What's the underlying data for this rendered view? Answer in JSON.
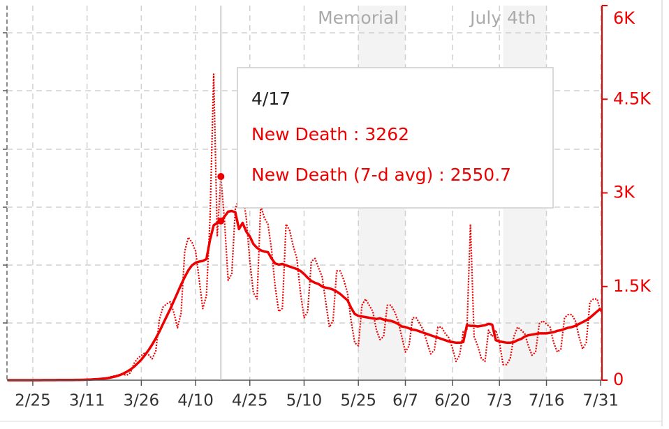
{
  "chart_data": {
    "type": "line",
    "categories": [
      null,
      null,
      null,
      null,
      null,
      null,
      null,
      "2/25",
      null,
      null,
      null,
      null,
      null,
      null,
      null,
      null,
      null,
      null,
      null,
      null,
      null,
      null,
      "3/11",
      null,
      null,
      null,
      null,
      null,
      null,
      null,
      null,
      null,
      null,
      null,
      null,
      null,
      null,
      "3/26",
      null,
      null,
      null,
      null,
      null,
      null,
      null,
      null,
      null,
      null,
      null,
      null,
      null,
      null,
      "4/10",
      null,
      null,
      null,
      null,
      null,
      null,
      null,
      null,
      null,
      null,
      null,
      null,
      null,
      null,
      "4/25",
      null,
      null,
      null,
      null,
      null,
      null,
      null,
      null,
      null,
      null,
      null,
      null,
      null,
      null,
      "5/10",
      null,
      null,
      null,
      null,
      null,
      null,
      null,
      null,
      null,
      null,
      null,
      null,
      null,
      null,
      "5/25",
      null,
      null,
      null,
      null,
      null,
      null,
      null,
      null,
      null,
      null,
      null,
      null,
      "6/7",
      null,
      null,
      null,
      null,
      null,
      null,
      null,
      null,
      null,
      null,
      null,
      null,
      "6/20",
      null,
      null,
      null,
      null,
      null,
      null,
      null,
      null,
      null,
      null,
      null,
      null,
      "7/3",
      null,
      null,
      null,
      null,
      null,
      null,
      null,
      null,
      null,
      null,
      null,
      null,
      "7/16",
      null,
      null,
      null,
      null,
      null,
      null,
      null,
      null,
      null,
      null,
      null,
      null,
      null,
      null,
      "7/31"
    ],
    "series": [
      {
        "name": "New Death",
        "color": "#ee0000",
        "style": "dotted",
        "values": [
          0,
          0,
          0,
          0,
          0,
          0,
          0,
          0,
          0,
          1,
          0,
          1,
          2,
          1,
          2,
          3,
          2,
          3,
          3,
          2,
          4,
          8,
          10,
          12,
          14,
          14,
          13,
          20,
          45,
          62,
          74,
          88,
          89,
          81,
          119,
          269,
          351,
          396,
          440,
          408,
          342,
          469,
          975,
          1170,
          1224,
          1254,
          1080,
          840,
          1071,
          2063,
          2288,
          2208,
          2068,
          1615,
          1146,
          1358,
          2600,
          4900,
          2300,
          3262,
          2550,
          1600,
          1700,
          2750,
          2900,
          3000,
          2600,
          1900,
          1400,
          1300,
          2800,
          2600,
          2500,
          2100,
          1500,
          1100,
          1150,
          2500,
          2400,
          2150,
          1950,
          1400,
          1000,
          1100,
          1900,
          1950,
          1800,
          1650,
          1250,
          850,
          950,
          1750,
          1750,
          1600,
          1400,
          950,
          600,
          550,
          1200,
          1300,
          1200,
          1100,
          800,
          650,
          700,
          1200,
          1200,
          1100,
          950,
          700,
          450,
          550,
          1000,
          1000,
          900,
          800,
          600,
          420,
          480,
          850,
          850,
          750,
          680,
          520,
          300,
          400,
          780,
          800,
          2500,
          700,
          550,
          350,
          300,
          800,
          700,
          800,
          600,
          250,
          250,
          350,
          700,
          850,
          800,
          750,
          550,
          400,
          450,
          900,
          950,
          900,
          850,
          600,
          450,
          500,
          1000,
          1050,
          1050,
          950,
          700,
          500,
          600,
          1250,
          1300,
          1300,
          1100
        ]
      },
      {
        "name": "New Death (7-d avg)",
        "color": "#ee0000",
        "style": "solid",
        "values": [
          0,
          0,
          0,
          0,
          0,
          0,
          0,
          0,
          0,
          0,
          1,
          1,
          1,
          1,
          2,
          2,
          2,
          3,
          3,
          4,
          5,
          6,
          8,
          10,
          13,
          17,
          22,
          28,
          36,
          48,
          62,
          80,
          105,
          135,
          170,
          215,
          270,
          330,
          400,
          480,
          570,
          670,
          780,
          900,
          1020,
          1140,
          1270,
          1400,
          1530,
          1650,
          1760,
          1840,
          1880,
          1900,
          1910,
          1940,
          2250,
          2480,
          2520,
          2550.7,
          2620,
          2700,
          2710,
          2690,
          2420,
          2520,
          2380,
          2300,
          2180,
          2120,
          2080,
          2060,
          2050,
          1950,
          1870,
          1850,
          1860,
          1840,
          1820,
          1800,
          1780,
          1750,
          1700,
          1640,
          1590,
          1560,
          1540,
          1500,
          1480,
          1470,
          1450,
          1420,
          1380,
          1330,
          1280,
          1160,
          1060,
          1030,
          1020,
          1010,
          1000,
          990,
          980,
          990,
          970,
          960,
          950,
          930,
          900,
          860,
          850,
          830,
          810,
          800,
          780,
          760,
          740,
          720,
          700,
          680,
          660,
          640,
          620,
          610,
          600,
          600,
          610,
          880,
          870,
          870,
          860,
          870,
          880,
          900,
          890,
          640,
          620,
          610,
          600,
          600,
          610,
          640,
          660,
          700,
          720,
          730,
          740,
          750,
          750,
          750,
          760,
          770,
          790,
          800,
          820,
          840,
          850,
          870,
          900,
          930,
          960,
          1000,
          1050,
          1100,
          1150
        ]
      }
    ],
    "ylim": [
      0,
      6000
    ],
    "yticks": [
      0,
      {
        "value": 1500,
        "label": "1.5K"
      },
      {
        "value": 3000,
        "label": "3K"
      },
      {
        "value": 4500,
        "label": "4.5K"
      },
      {
        "value": 6000,
        "label": "6K"
      }
    ],
    "axis_color": "#ee0000",
    "grid": true,
    "shaded_periods": [
      {
        "label": "Memorial",
        "start": 97,
        "end": 110
      },
      {
        "label": "July 4th",
        "start": 137,
        "end": 149
      }
    ],
    "tooltip": {
      "title": "4/17",
      "index": 59
    }
  }
}
